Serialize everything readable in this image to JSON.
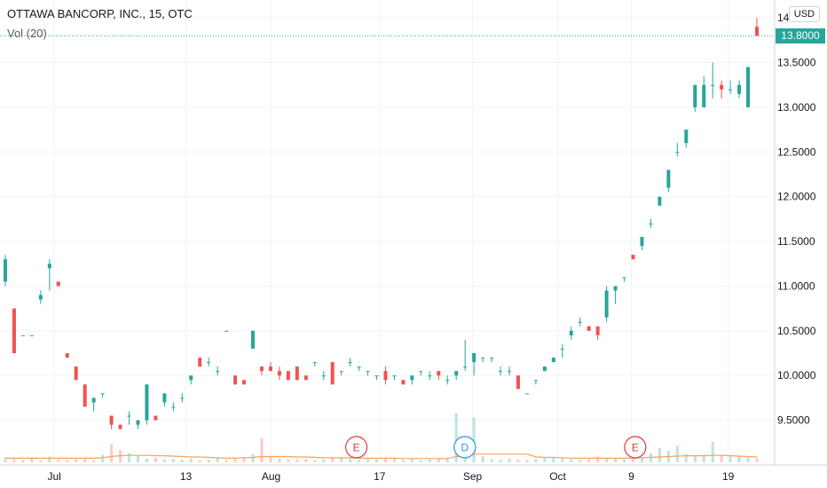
{
  "legend": {
    "title": "OTTAWA BANCORP, INC., 15, OTC",
    "volume": "Vol (20)"
  },
  "currency": "USD",
  "last_price": "13.8000",
  "colors": {
    "up": "#26a69a",
    "down": "#ef5350",
    "volume_ma": "#f7a35c",
    "earnings_marker": "#e53935",
    "dividend_marker": "#2196f3",
    "price_badge": "#26a69a"
  },
  "markers": [
    {
      "label": "E",
      "type": "earnings",
      "position": 0.46
    },
    {
      "label": "D",
      "type": "dividend",
      "position": 0.6
    },
    {
      "label": "E",
      "type": "earnings",
      "position": 0.82
    }
  ],
  "chart_data": {
    "type": "candlestick",
    "x_ticks": [
      "Jul",
      "13",
      "Aug",
      "17",
      "Sep",
      "Oct",
      "9",
      "19"
    ],
    "y_ticks": [
      "14.0000",
      "13.5000",
      "13.0000",
      "12.5000",
      "12.0000",
      "11.5000",
      "11.0000",
      "10.5000",
      "10.0000",
      "9.5000"
    ],
    "ylim": [
      9.0,
      14.2
    ],
    "grid": true,
    "volume_panel": true,
    "candles": [
      [
        11.05,
        11.35,
        11.0,
        11.3
      ],
      [
        10.75,
        10.75,
        10.25,
        10.25
      ],
      [
        10.45,
        10.45,
        10.45,
        10.45
      ],
      [
        10.45,
        10.45,
        10.45,
        10.45
      ],
      [
        10.85,
        10.95,
        10.8,
        10.9
      ],
      [
        11.2,
        11.3,
        10.95,
        11.25
      ],
      [
        11.05,
        11.05,
        11.0,
        11.0
      ],
      [
        10.25,
        10.25,
        10.2,
        10.2
      ],
      [
        10.1,
        10.1,
        9.95,
        9.95
      ],
      [
        9.9,
        9.9,
        9.65,
        9.65
      ],
      [
        9.7,
        9.75,
        9.6,
        9.75
      ],
      [
        9.8,
        9.8,
        9.75,
        9.8
      ],
      [
        9.55,
        9.55,
        9.4,
        9.45
      ],
      [
        9.45,
        9.45,
        9.4,
        9.4
      ],
      [
        9.55,
        9.6,
        9.45,
        9.55
      ],
      [
        9.45,
        9.5,
        9.4,
        9.5
      ],
      [
        9.5,
        9.9,
        9.45,
        9.9
      ],
      [
        9.55,
        9.55,
        9.5,
        9.5
      ],
      [
        9.7,
        9.8,
        9.65,
        9.8
      ],
      [
        9.65,
        9.7,
        9.6,
        9.65
      ],
      [
        9.75,
        9.8,
        9.7,
        9.75
      ],
      [
        9.95,
        10.0,
        9.9,
        10.0
      ],
      [
        10.2,
        10.2,
        10.1,
        10.1
      ],
      [
        10.15,
        10.2,
        10.1,
        10.15
      ],
      [
        10.05,
        10.1,
        10.0,
        10.05
      ],
      [
        10.5,
        10.5,
        10.5,
        10.5
      ],
      [
        10.0,
        10.0,
        9.9,
        9.9
      ],
      [
        9.95,
        9.95,
        9.9,
        9.9
      ],
      [
        10.3,
        10.5,
        10.3,
        10.5
      ],
      [
        10.1,
        10.1,
        10.0,
        10.05
      ],
      [
        10.1,
        10.15,
        10.05,
        10.05
      ],
      [
        10.05,
        10.1,
        9.95,
        10.0
      ],
      [
        10.05,
        10.05,
        9.95,
        9.95
      ],
      [
        10.1,
        10.1,
        9.95,
        9.95
      ],
      [
        10.0,
        10.0,
        9.95,
        9.95
      ],
      [
        10.15,
        10.15,
        10.1,
        10.15
      ],
      [
        10.0,
        10.05,
        9.95,
        10.0
      ],
      [
        10.15,
        10.15,
        9.9,
        9.9
      ],
      [
        10.05,
        10.05,
        10.0,
        10.05
      ],
      [
        10.15,
        10.2,
        10.1,
        10.15
      ],
      [
        10.1,
        10.1,
        10.05,
        10.1
      ],
      [
        10.05,
        10.05,
        10.0,
        10.05
      ],
      [
        10.0,
        10.0,
        9.95,
        10.0
      ],
      [
        10.05,
        10.1,
        9.9,
        9.95
      ],
      [
        10.0,
        10.0,
        9.95,
        10.0
      ],
      [
        9.95,
        9.95,
        9.9,
        9.9
      ],
      [
        9.95,
        10.0,
        9.9,
        10.0
      ],
      [
        10.05,
        10.05,
        10.0,
        10.05
      ],
      [
        10.0,
        10.05,
        9.95,
        10.0
      ],
      [
        10.05,
        10.05,
        9.95,
        10.0
      ],
      [
        9.95,
        10.0,
        9.9,
        9.95
      ],
      [
        10.0,
        10.05,
        9.95,
        10.05
      ],
      [
        10.1,
        10.4,
        10.05,
        10.1
      ],
      [
        10.15,
        10.25,
        10.0,
        10.25
      ],
      [
        10.2,
        10.2,
        10.15,
        10.2
      ],
      [
        10.2,
        10.2,
        10.15,
        10.2
      ],
      [
        10.05,
        10.1,
        10.0,
        10.05
      ],
      [
        10.05,
        10.1,
        10.0,
        10.05
      ],
      [
        10.0,
        10.0,
        9.85,
        9.85
      ],
      [
        9.8,
        9.8,
        9.8,
        9.8
      ],
      [
        9.95,
        9.95,
        9.9,
        9.95
      ],
      [
        10.05,
        10.1,
        10.05,
        10.1
      ],
      [
        10.15,
        10.2,
        10.15,
        10.2
      ],
      [
        10.3,
        10.35,
        10.2,
        10.3
      ],
      [
        10.45,
        10.55,
        10.4,
        10.5
      ],
      [
        10.6,
        10.65,
        10.55,
        10.6
      ],
      [
        10.55,
        10.55,
        10.5,
        10.5
      ],
      [
        10.55,
        10.55,
        10.4,
        10.45
      ],
      [
        10.65,
        11.0,
        10.6,
        10.95
      ],
      [
        10.95,
        11.0,
        10.8,
        11.0
      ],
      [
        11.1,
        11.1,
        11.05,
        11.1
      ],
      [
        11.35,
        11.35,
        11.3,
        11.3
      ],
      [
        11.45,
        11.55,
        11.4,
        11.55
      ],
      [
        11.7,
        11.75,
        11.65,
        11.7
      ],
      [
        11.9,
        12.0,
        11.9,
        12.0
      ],
      [
        12.1,
        12.3,
        12.05,
        12.3
      ],
      [
        12.5,
        12.6,
        12.45,
        12.5
      ],
      [
        12.6,
        12.75,
        12.55,
        12.75
      ],
      [
        13.0,
        13.25,
        12.95,
        13.25
      ],
      [
        13.0,
        13.35,
        13.0,
        13.25
      ],
      [
        13.25,
        13.5,
        13.1,
        13.25
      ],
      [
        13.25,
        13.3,
        13.1,
        13.2
      ],
      [
        13.2,
        13.3,
        13.15,
        13.2
      ],
      [
        13.15,
        13.3,
        13.1,
        13.25
      ],
      [
        13.0,
        13.45,
        13.0,
        13.45
      ],
      [
        13.9,
        14.0,
        13.8,
        13.8
      ]
    ],
    "volume": [
      12,
      8,
      6,
      9,
      5,
      14,
      7,
      6,
      10,
      8,
      5,
      18,
      45,
      30,
      22,
      16,
      9,
      11,
      7,
      8,
      6,
      9,
      5,
      7,
      10,
      6,
      8,
      12,
      20,
      60,
      15,
      9,
      7,
      6,
      8,
      5,
      7,
      10,
      12,
      9,
      6,
      8,
      7,
      9,
      11,
      6,
      8,
      5,
      7,
      9,
      10,
      120,
      30,
      110,
      15,
      8,
      6,
      9,
      7,
      5,
      8,
      10,
      12,
      9,
      7,
      6,
      8,
      14,
      11,
      9,
      8,
      12,
      10,
      22,
      35,
      28,
      40,
      20,
      15,
      18,
      50,
      18,
      16,
      14,
      12,
      10
    ],
    "volume_ma": [
      10,
      10,
      10,
      10,
      10,
      10,
      10,
      10,
      10,
      10,
      10,
      11,
      14,
      16,
      17,
      17,
      17,
      16,
      16,
      15,
      14,
      13,
      13,
      12,
      11,
      10,
      10,
      11,
      12,
      14,
      14,
      14,
      14,
      13,
      13,
      12,
      11,
      11,
      11,
      11,
      10,
      10,
      10,
      10,
      10,
      9,
      9,
      9,
      9,
      9,
      9,
      14,
      15,
      20,
      20,
      20,
      20,
      20,
      20,
      20,
      13,
      12,
      12,
      11,
      10,
      10,
      10,
      10,
      10,
      10,
      10,
      10,
      11,
      12,
      13,
      14,
      15,
      16,
      16,
      16,
      17,
      17,
      16,
      15,
      14,
      13
    ]
  }
}
